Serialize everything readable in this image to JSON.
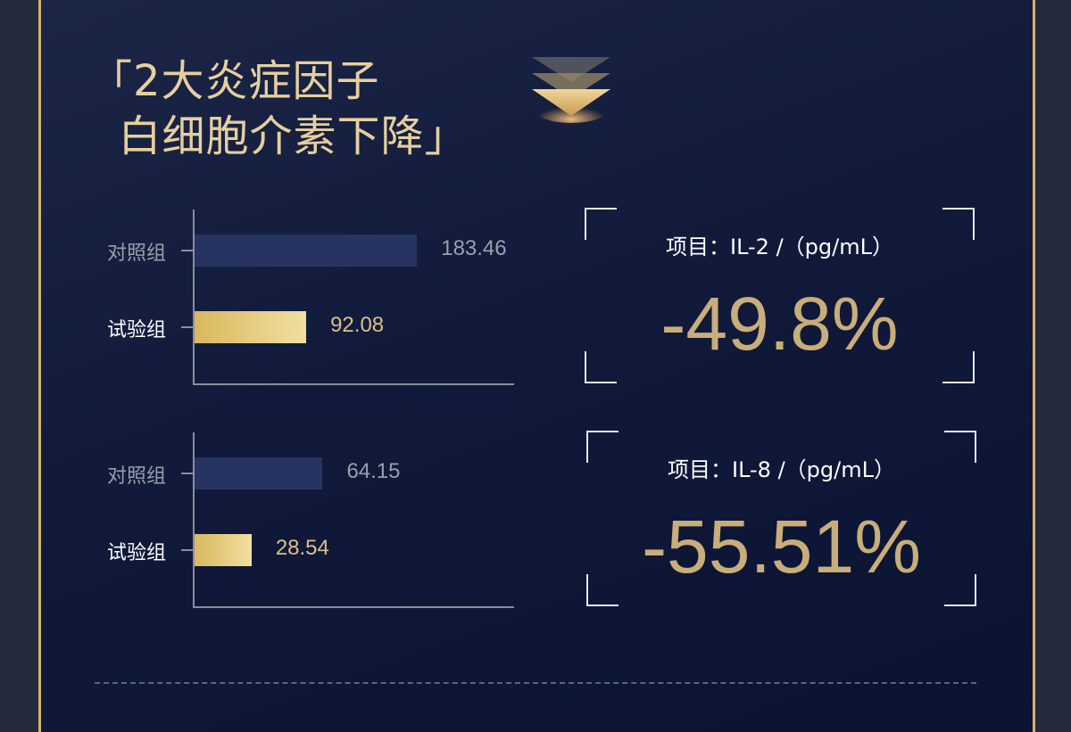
{
  "title": {
    "line1": "「2大炎症因子",
    "line2": "  白细胞介素下降」"
  },
  "icons": {
    "title_decoration": "triple-chevron-down-icon"
  },
  "colors": {
    "background": "#111a3a",
    "gold": "#c9ad7a",
    "title": "#e6cf9f",
    "control_bar": "#273462",
    "test_bar_start": "#d9b85e",
    "test_bar_end": "#f1dfa0"
  },
  "chart_data": [
    {
      "type": "bar",
      "orientation": "horizontal",
      "categories": [
        "对照组",
        "试验组"
      ],
      "values": [
        183.46,
        92.08
      ],
      "value_labels": [
        "183.46",
        "92.08"
      ],
      "xlim": [
        0,
        265
      ],
      "grid": false
    },
    {
      "type": "bar",
      "orientation": "horizontal",
      "categories": [
        "对照组",
        "试验组"
      ],
      "values": [
        64.15,
        28.54
      ],
      "value_labels": [
        "64.15",
        "28.54"
      ],
      "xlim": [
        0,
        161
      ],
      "grid": false
    }
  ],
  "stats": [
    {
      "label": "项目：IL-2 /（pg/mL）",
      "value": "-49.8%"
    },
    {
      "label": "项目：IL-8 /（pg/mL）",
      "value": "-55.51%"
    }
  ]
}
